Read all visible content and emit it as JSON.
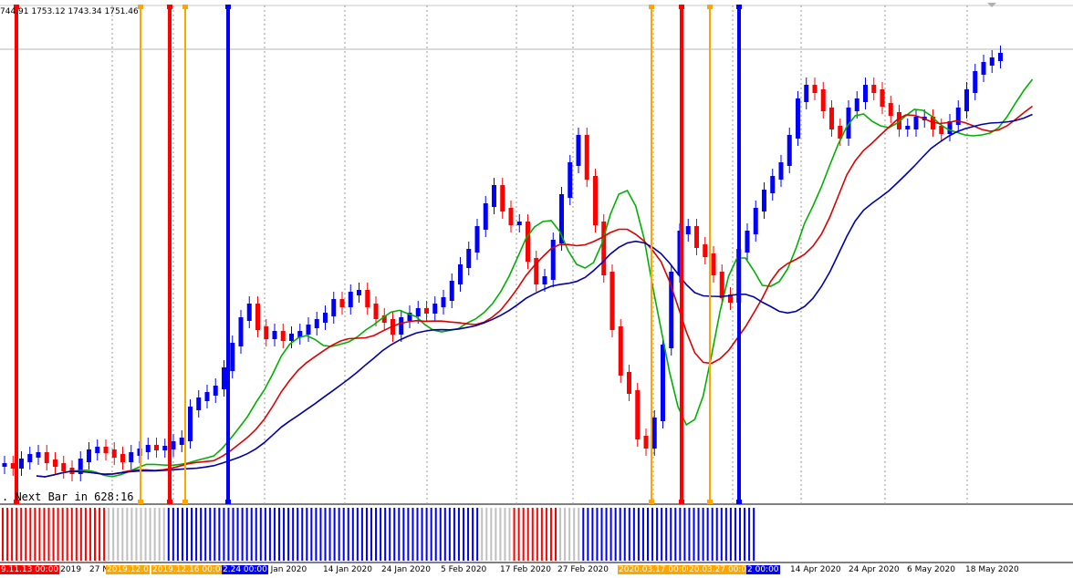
{
  "ohlc_readout": "744.91 1753.12 1743.34 1751.46",
  "next_bar_timer": ". Next Bar in 628:16",
  "time_axis_ticks": [
    "v 2019",
    "27 N",
    "2 Jan 2020",
    "14 Jan 2020",
    "24 Jan 2020",
    "5 Feb 2020",
    "17 Feb 2020",
    "27 Feb 2020",
    "14 Apr 2020",
    "24 Apr 2020",
    "6 May 2020",
    "18 May 2020"
  ],
  "vline_labels": [
    {
      "text": "9.11.13 00:00",
      "color": "#ff0000"
    },
    {
      "text": "2019.12.0",
      "color": "#ffa500"
    },
    {
      "text": "2019.12.16 00:00",
      "color": "#ffa500"
    },
    {
      "text": "2.24 00:00",
      "color": "#0000ff"
    },
    {
      "text": "2020.03.17 00:00",
      "color": "#ffa500"
    },
    {
      "text": "20.03.27 00:00",
      "color": "#ffa500"
    },
    {
      "text": "2 00:00",
      "color": "#0000ff"
    }
  ],
  "colors": {
    "bull": "#0000ff",
    "bear": "#ff0000",
    "ma_fast": "#00b000",
    "ma_mid": "#dd0000",
    "ma_slow": "#0000aa",
    "neutral_hist": "#c0c0c0",
    "orange": "#ffa500"
  },
  "histogram_segments": [
    {
      "state": "red",
      "bars": 23
    },
    {
      "state": "gray",
      "bars": 13
    },
    {
      "state": "blue",
      "bars": 68
    },
    {
      "state": "gray",
      "bars": 7
    },
    {
      "state": "red",
      "bars": 10
    },
    {
      "state": "gray",
      "bars": 5
    },
    {
      "state": "blue",
      "bars": 38
    }
  ]
}
